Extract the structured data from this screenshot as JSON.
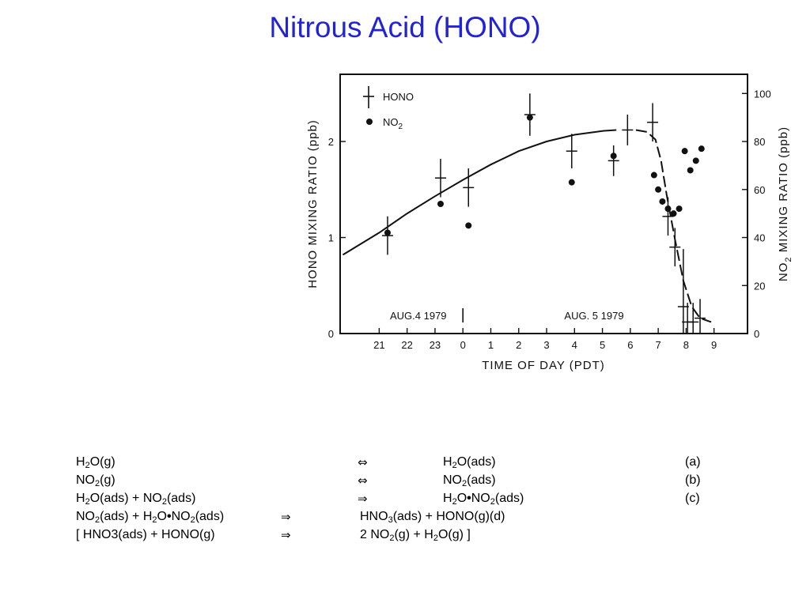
{
  "slide": {
    "title": "Nitrous Acid (HONO)"
  },
  "chart_data": {
    "type": "scatter",
    "xlabel": "TIME OF DAY (PDT)",
    "ylabel_left": "HONO MIXING RATIO (ppb)",
    "ylabel_right_pre": "NO",
    "ylabel_right_sub": "2",
    "ylabel_right_post": " MIXING RATIO (ppb)",
    "x_tick_labels": [
      "21",
      "22",
      "23",
      "0",
      "1",
      "2",
      "3",
      "4",
      "5",
      "6",
      "7",
      "8",
      "9"
    ],
    "x_tick_hours": [
      21,
      22,
      23,
      24,
      25,
      26,
      27,
      28,
      29,
      30,
      31,
      32,
      33
    ],
    "xlim_hours": [
      19.6,
      34.2
    ],
    "ylim_left": [
      0,
      2.7
    ],
    "yticks_left": [
      0,
      1,
      2
    ],
    "ylim_right": [
      0,
      108
    ],
    "yticks_right": [
      0,
      20,
      40,
      60,
      80,
      100
    ],
    "date_labels": [
      {
        "text": "AUG.4 1979",
        "hour": 22.4
      },
      {
        "text": "AUG. 5 1979",
        "hour": 28.7
      }
    ],
    "day_divider_hour": 24,
    "grid": false,
    "legend_position": "top-left",
    "legend": [
      {
        "label": "HONO",
        "marker": "cross"
      },
      {
        "label_pre": "NO",
        "label_sub": "2",
        "marker": "dot"
      }
    ],
    "series": [
      {
        "name": "HONO",
        "axis": "left",
        "marker": "cross",
        "points": [
          {
            "x": 21.3,
            "y": 1.02,
            "err": 0.2
          },
          {
            "x": 23.2,
            "y": 1.62,
            "err": 0.2
          },
          {
            "x": 24.2,
            "y": 1.52,
            "err": 0.2
          },
          {
            "x": 26.4,
            "y": 2.28,
            "err": 0.22
          },
          {
            "x": 27.9,
            "y": 1.9,
            "err": 0.18
          },
          {
            "x": 29.4,
            "y": 1.8,
            "err": 0.16
          },
          {
            "x": 29.9,
            "y": 2.12,
            "err": 0.16
          },
          {
            "x": 30.8,
            "y": 2.2,
            "err": 0.2
          },
          {
            "x": 31.35,
            "y": 1.22,
            "err": 0.2
          },
          {
            "x": 31.6,
            "y": 0.9,
            "err": 0.2
          },
          {
            "x": 31.9,
            "y": 0.28,
            "err": 0.6
          },
          {
            "x": 32.05,
            "y": 0.12,
            "err": 0.2
          },
          {
            "x": 32.25,
            "y": 0.12,
            "err": 0.2
          },
          {
            "x": 32.5,
            "y": 0.16,
            "err": 0.2
          }
        ]
      },
      {
        "name_pre": "NO",
        "name_sub": "2",
        "axis": "right",
        "marker": "dot",
        "points": [
          {
            "x": 21.3,
            "y": 42
          },
          {
            "x": 23.2,
            "y": 54
          },
          {
            "x": 24.2,
            "y": 45
          },
          {
            "x": 26.4,
            "y": 90
          },
          {
            "x": 27.9,
            "y": 63
          },
          {
            "x": 29.4,
            "y": 74
          },
          {
            "x": 30.85,
            "y": 66
          },
          {
            "x": 31.0,
            "y": 60
          },
          {
            "x": 31.15,
            "y": 55
          },
          {
            "x": 31.35,
            "y": 52
          },
          {
            "x": 31.55,
            "y": 50
          },
          {
            "x": 31.75,
            "y": 52
          },
          {
            "x": 31.95,
            "y": 76
          },
          {
            "x": 32.15,
            "y": 68
          },
          {
            "x": 32.35,
            "y": 72
          },
          {
            "x": 32.55,
            "y": 77
          }
        ]
      }
    ],
    "fit_curve": {
      "axis": "left",
      "solid": [
        [
          19.7,
          0.82
        ],
        [
          21,
          1.05
        ],
        [
          22,
          1.25
        ],
        [
          23,
          1.43
        ],
        [
          24,
          1.6
        ],
        [
          25,
          1.76
        ],
        [
          26,
          1.9
        ],
        [
          27,
          2.0
        ],
        [
          28,
          2.07
        ],
        [
          29,
          2.11
        ],
        [
          29.5,
          2.12
        ]
      ],
      "dashed": [
        [
          30.2,
          2.12
        ],
        [
          30.6,
          2.1
        ],
        [
          30.9,
          2.02
        ],
        [
          31.1,
          1.8
        ],
        [
          31.3,
          1.45
        ],
        [
          31.6,
          0.98
        ],
        [
          31.9,
          0.55
        ],
        [
          32.2,
          0.28
        ],
        [
          32.5,
          0.16
        ],
        [
          32.9,
          0.12
        ]
      ]
    }
  },
  "equations": [
    {
      "lhs": [
        "H",
        "2",
        "O(g)"
      ],
      "arrow": "⇔",
      "rhs": [
        "H",
        "2",
        "O(ads)"
      ],
      "tag": "(a)"
    },
    {
      "lhs": [
        "NO",
        "2",
        "(g)"
      ],
      "arrow": "⇔",
      "rhs": [
        "NO",
        "2",
        "(ads)"
      ],
      "tag": "(b)"
    },
    {
      "lhs": [
        "H",
        "2",
        "O(ads) + NO",
        "2",
        "(ads)"
      ],
      "arrow": "⇒",
      "rhs": [
        "H",
        "2",
        "O",
        "•",
        "NO",
        "2",
        "(ads)"
      ],
      "tag": "(c)"
    },
    {
      "lhs": [
        "NO",
        "2",
        "(ads) + H",
        "2",
        "O",
        "•",
        "NO",
        "2",
        "(ads)"
      ],
      "arrow": "⇒",
      "rhs": [
        "HNO",
        "3",
        "(ads) + HONO(g)(d)"
      ],
      "tag": ""
    },
    {
      "lhs": [
        "[ HNO3(ads) + HONO(g)"
      ],
      "arrow": "⇒",
      "rhs": [
        "2 NO",
        "2",
        "(g) + H",
        "2",
        "O(g) ]"
      ],
      "tag": ""
    }
  ]
}
